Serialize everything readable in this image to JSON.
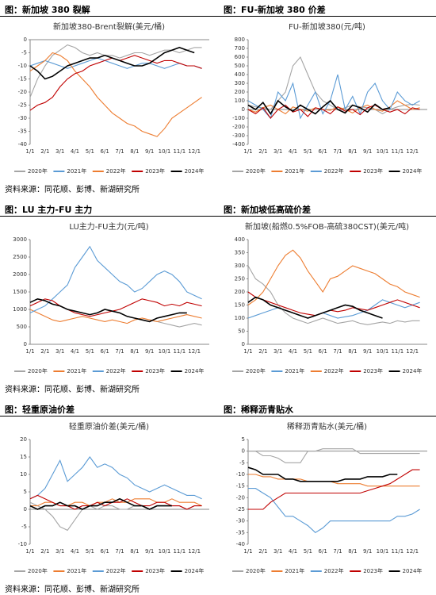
{
  "captions": [
    "图：新加坡 380 裂解",
    "图：FU-新加坡 380 价差",
    "图：LU 主力-FU 主力",
    "图：新加坡低高硫价差",
    "图：轻重原油价差",
    "图：稀释沥青贴水"
  ],
  "sources": [
    "资料来源：同花顺、彭博、新湖研究所",
    "资料来源：同花顺、彭博、新湖研究所",
    "资料来源：同花顺、彭博、新湖研究所"
  ],
  "chart_data": [
    {
      "type": "line",
      "title": "新加坡380-Brent裂解(美元/桶)",
      "categories": [
        "1/1",
        null,
        "2/1",
        null,
        "3/1",
        null,
        "4/1",
        null,
        "5/1",
        null,
        "6/1",
        null,
        "7/1",
        null,
        "8/1",
        null,
        "9/1",
        null,
        "10/1",
        null,
        "11/1",
        null,
        "12/1",
        null
      ],
      "ylim": [
        -40,
        0
      ],
      "yticks": [
        -40,
        -35,
        -30,
        -25,
        -20,
        -15,
        -10,
        -5,
        0
      ],
      "series": [
        {
          "name": "2020年",
          "color": "#a5a5a5",
          "values": [
            -22,
            -15,
            -10,
            -6,
            -4,
            -2,
            -3,
            -5,
            -6,
            -5,
            -6,
            -6,
            -7,
            -6,
            -5,
            -5,
            -6,
            -5,
            -4,
            -4,
            -5,
            -4,
            -3,
            -3
          ]
        },
        {
          "name": "2021年",
          "color": "#5b9bd5",
          "values": [
            -10,
            -9,
            -8,
            -9,
            -10,
            -11,
            -10,
            -9,
            -8,
            -7,
            -8,
            -9,
            -10,
            -11,
            -10,
            -9,
            -9,
            -10,
            -11,
            -10,
            -9,
            -10,
            -10,
            -11
          ]
        },
        {
          "name": "2022年",
          "color": "#ed7d31",
          "values": [
            -12,
            -10,
            -8,
            -5,
            -6,
            -8,
            -12,
            -15,
            -18,
            -22,
            -25,
            -28,
            -30,
            -32,
            -33,
            -35,
            -36,
            -37,
            -34,
            -30,
            -28,
            -26,
            -24,
            -22
          ]
        },
        {
          "name": "2023年",
          "color": "#c00000",
          "values": [
            -27,
            -25,
            -24,
            -22,
            -18,
            -15,
            -13,
            -12,
            -10,
            -9,
            -8,
            -7,
            -8,
            -7,
            -6,
            -7,
            -8,
            -9,
            -8,
            -8,
            -9,
            -10,
            -10,
            -11
          ]
        },
        {
          "name": "2024年",
          "color": "#000000",
          "values": [
            -10,
            -12,
            -15,
            -14,
            -12,
            -10,
            -9,
            -8,
            -7,
            -7,
            -6,
            -7,
            -8,
            -9,
            -10,
            -10,
            -9,
            -7,
            -5,
            -4,
            -3,
            -4,
            -5,
            null
          ]
        }
      ]
    },
    {
      "type": "line",
      "title": "FU-新加坡380(元/吨)",
      "categories": [
        "1/1",
        null,
        "2/1",
        null,
        "3/1",
        null,
        "4/1",
        null,
        "5/1",
        null,
        "6/1",
        null,
        "7/1",
        null,
        "8/1",
        null,
        "9/1",
        null,
        "10/1",
        null,
        "11/1",
        null,
        "12/1",
        null
      ],
      "ylim": [
        -400,
        800
      ],
      "yticks": [
        -400,
        -300,
        -200,
        -100,
        0,
        100,
        200,
        300,
        400,
        500,
        600,
        700,
        800
      ],
      "series": [
        {
          "name": "2020年",
          "color": "#a5a5a5",
          "values": [
            50,
            30,
            20,
            0,
            100,
            200,
            500,
            600,
            400,
            200,
            100,
            50,
            0,
            20,
            50,
            30,
            20,
            0,
            -50,
            0,
            30,
            50,
            60,
            50
          ]
        },
        {
          "name": "2021年",
          "color": "#ed7d31",
          "values": [
            0,
            -30,
            20,
            50,
            0,
            -50,
            30,
            0,
            -20,
            20,
            0,
            -10,
            30,
            0,
            -40,
            20,
            50,
            0,
            -20,
            30,
            100,
            50,
            0,
            20
          ]
        },
        {
          "name": "2022年",
          "color": "#5b9bd5",
          "values": [
            100,
            50,
            0,
            -100,
            200,
            100,
            300,
            -100,
            50,
            200,
            -50,
            100,
            400,
            0,
            150,
            -50,
            200,
            300,
            100,
            0,
            200,
            100,
            50,
            100
          ]
        },
        {
          "name": "2023年",
          "color": "#c00000",
          "values": [
            0,
            -50,
            20,
            -100,
            0,
            50,
            -30,
            0,
            -80,
            20,
            0,
            -50,
            30,
            -20,
            0,
            -60,
            20,
            50,
            0,
            -30,
            0,
            -50,
            20,
            0
          ]
        },
        {
          "name": "2024年",
          "color": "#000000",
          "values": [
            50,
            0,
            80,
            -50,
            100,
            30,
            -20,
            50,
            0,
            -50,
            30,
            100,
            0,
            -40,
            50,
            20,
            -30,
            60,
            0,
            20,
            null,
            null,
            null,
            null
          ]
        }
      ]
    },
    {
      "type": "line",
      "title": "LU主力-FU主力(元/吨)",
      "categories": [
        "1/1",
        null,
        "2/1",
        null,
        "3/1",
        null,
        "4/1",
        null,
        "5/1",
        null,
        "6/1",
        null,
        "7/1",
        null,
        "8/1",
        null,
        "9/1",
        null,
        "10/1",
        null,
        "11/1",
        null,
        "12/1",
        null
      ],
      "ylim": [
        0,
        3000
      ],
      "yticks": [
        0,
        500,
        1000,
        1500,
        2000,
        2500,
        3000
      ],
      "series": [
        {
          "name": "2020年",
          "color": "#a5a5a5",
          "values": [
            null,
            null,
            null,
            null,
            null,
            null,
            null,
            null,
            null,
            null,
            null,
            null,
            null,
            null,
            null,
            null,
            700,
            650,
            600,
            550,
            500,
            550,
            600,
            550
          ]
        },
        {
          "name": "2021年",
          "color": "#ed7d31",
          "values": [
            1000,
            900,
            800,
            700,
            650,
            700,
            750,
            800,
            750,
            700,
            650,
            700,
            650,
            600,
            700,
            750,
            700,
            650,
            700,
            750,
            800,
            850,
            800,
            750
          ]
        },
        {
          "name": "2022年",
          "color": "#5b9bd5",
          "values": [
            900,
            1000,
            1100,
            1300,
            1500,
            1700,
            2200,
            2500,
            2800,
            2400,
            2200,
            2000,
            1800,
            1700,
            1500,
            1600,
            1800,
            2000,
            2100,
            2000,
            1800,
            1500,
            1400,
            1300
          ]
        },
        {
          "name": "2023年",
          "color": "#c00000",
          "values": [
            1100,
            1200,
            1300,
            1250,
            1100,
            1000,
            900,
            850,
            800,
            850,
            900,
            950,
            1000,
            1100,
            1200,
            1300,
            1250,
            1200,
            1100,
            1150,
            1100,
            1200,
            1150,
            1100
          ]
        },
        {
          "name": "2024年",
          "color": "#000000",
          "values": [
            1200,
            1300,
            1250,
            1150,
            1100,
            1000,
            950,
            900,
            850,
            900,
            1000,
            950,
            900,
            800,
            750,
            700,
            650,
            750,
            800,
            850,
            900,
            900,
            null,
            null
          ]
        }
      ]
    },
    {
      "type": "line",
      "title": "新加坡(船燃0.5%FOB-高硫380CST)(美元/吨)",
      "categories": [
        "1/1",
        null,
        "2/1",
        null,
        "3/1",
        null,
        "4/1",
        null,
        "5/1",
        null,
        "6/1",
        null,
        "7/1",
        null,
        "8/1",
        null,
        "9/1",
        null,
        "10/1",
        null,
        "11/1",
        null,
        "12/1",
        null
      ],
      "ylim": [
        0,
        400
      ],
      "yticks": [
        0,
        50,
        100,
        150,
        200,
        250,
        300,
        350,
        400
      ],
      "series": [
        {
          "name": "2020年",
          "color": "#a5a5a5",
          "values": [
            300,
            250,
            230,
            200,
            150,
            120,
            100,
            90,
            80,
            90,
            100,
            90,
            80,
            85,
            90,
            80,
            75,
            80,
            85,
            80,
            90,
            85,
            90,
            90
          ]
        },
        {
          "name": "2021年",
          "color": "#5b9bd5",
          "values": [
            100,
            110,
            120,
            130,
            140,
            130,
            120,
            110,
            100,
            110,
            120,
            110,
            100,
            105,
            110,
            120,
            130,
            150,
            170,
            160,
            150,
            140,
            150,
            160
          ]
        },
        {
          "name": "2022年",
          "color": "#ed7d31",
          "values": [
            150,
            170,
            200,
            250,
            300,
            340,
            360,
            330,
            280,
            240,
            200,
            250,
            260,
            280,
            300,
            290,
            280,
            270,
            250,
            230,
            220,
            200,
            190,
            180
          ]
        },
        {
          "name": "2023年",
          "color": "#c00000",
          "values": [
            200,
            180,
            170,
            160,
            150,
            140,
            130,
            120,
            115,
            110,
            120,
            130,
            125,
            130,
            140,
            135,
            130,
            140,
            150,
            160,
            170,
            160,
            150,
            140
          ]
        },
        {
          "name": "2024年",
          "color": "#000000",
          "values": [
            160,
            180,
            170,
            150,
            140,
            130,
            120,
            110,
            100,
            110,
            120,
            130,
            140,
            150,
            145,
            130,
            120,
            110,
            100,
            null,
            null,
            null,
            null,
            null
          ]
        }
      ]
    },
    {
      "type": "line",
      "title": "轻重原油价差(美元/桶)",
      "categories": [
        "1/1",
        null,
        "2/1",
        null,
        "3/1",
        null,
        "4/1",
        null,
        "5/1",
        null,
        "6/1",
        null,
        "7/1",
        null,
        "8/1",
        null,
        "9/1",
        null,
        "10/1",
        null,
        "11/1",
        null,
        "12/1",
        null
      ],
      "ylim": [
        -10,
        20
      ],
      "yticks": [
        -10,
        -5,
        0,
        5,
        10,
        15,
        20
      ],
      "series": [
        {
          "name": "2020年",
          "color": "#a5a5a5",
          "values": [
            2,
            1,
            0,
            -2,
            -5,
            -6,
            -3,
            0,
            1,
            0,
            1,
            1,
            0,
            0,
            1,
            1,
            0,
            1,
            1,
            1,
            1,
            0,
            1,
            1
          ]
        },
        {
          "name": "2021年",
          "color": "#ed7d31",
          "values": [
            1,
            1,
            2,
            2,
            1,
            1,
            2,
            2,
            1,
            2,
            2,
            3,
            2,
            2,
            3,
            3,
            3,
            2,
            2,
            3,
            2,
            2,
            2,
            1
          ]
        },
        {
          "name": "2022年",
          "color": "#5b9bd5",
          "values": [
            3,
            4,
            6,
            10,
            14,
            8,
            10,
            12,
            15,
            12,
            13,
            12,
            10,
            9,
            7,
            6,
            5,
            6,
            7,
            6,
            5,
            4,
            4,
            3
          ]
        },
        {
          "name": "2023年",
          "color": "#c00000",
          "values": [
            3,
            4,
            3,
            2,
            1,
            1,
            0,
            1,
            1,
            2,
            1,
            2,
            2,
            3,
            2,
            1,
            1,
            2,
            2,
            1,
            1,
            0,
            1,
            1
          ]
        },
        {
          "name": "2024年",
          "color": "#000000",
          "values": [
            1,
            0,
            1,
            1,
            2,
            1,
            1,
            0,
            1,
            1,
            2,
            2,
            3,
            2,
            1,
            1,
            0,
            1,
            1,
            1,
            null,
            null,
            null,
            null
          ]
        }
      ]
    },
    {
      "type": "line",
      "title": "稀释沥青贴水(美元/桶)",
      "categories": [
        "1/1",
        null,
        "2/1",
        null,
        "3/1",
        null,
        "4/1",
        null,
        "5/1",
        null,
        "6/1",
        null,
        "7/1",
        null,
        "8/1",
        null,
        "9/1",
        null,
        "10/1",
        null,
        "11/1",
        null,
        "12/1",
        null
      ],
      "ylim": [
        -40,
        5
      ],
      "yticks": [
        -40,
        -35,
        -30,
        -25,
        -20,
        -15,
        -10,
        -5,
        0,
        5
      ],
      "series": [
        {
          "name": "2020年",
          "color": "#a5a5a5",
          "values": [
            0,
            0,
            -2,
            -2,
            -3,
            -5,
            -5,
            -5,
            0,
            0,
            1,
            1,
            1,
            1,
            1,
            -1,
            -1,
            -1,
            -1,
            -1,
            -1,
            -1,
            -1,
            -1
          ]
        },
        {
          "name": "2021年",
          "color": "#ed7d31",
          "values": [
            -10,
            -10,
            -11,
            -11,
            -12,
            -12,
            -12,
            -12,
            -13,
            -13,
            -13,
            -13,
            -14,
            -14,
            -14,
            -14,
            -15,
            -15,
            -15,
            -15,
            -15,
            -15,
            -15,
            -15
          ]
        },
        {
          "name": "2022年",
          "color": "#5b9bd5",
          "values": [
            -16,
            -16,
            -18,
            -20,
            -24,
            -28,
            -28,
            -30,
            -32,
            -35,
            -33,
            -30,
            -30,
            -30,
            -30,
            -30,
            -30,
            -30,
            -30,
            -30,
            -28,
            -28,
            -27,
            -25
          ]
        },
        {
          "name": "2023年",
          "color": "#c00000",
          "values": [
            -25,
            -25,
            -25,
            -22,
            -20,
            -18,
            -18,
            -18,
            -18,
            -18,
            -18,
            -18,
            -18,
            -18,
            -18,
            -18,
            -17,
            -16,
            -15,
            -14,
            -12,
            -10,
            -8,
            -8
          ]
        },
        {
          "name": "2024年",
          "color": "#000000",
          "values": [
            -7,
            -8,
            -10,
            -10,
            -10,
            -12,
            -12,
            -13,
            -13,
            -13,
            -13,
            -13,
            -13,
            -12,
            -12,
            -12,
            -11,
            -11,
            -11,
            -10,
            -10,
            null,
            null,
            null
          ]
        }
      ]
    }
  ]
}
